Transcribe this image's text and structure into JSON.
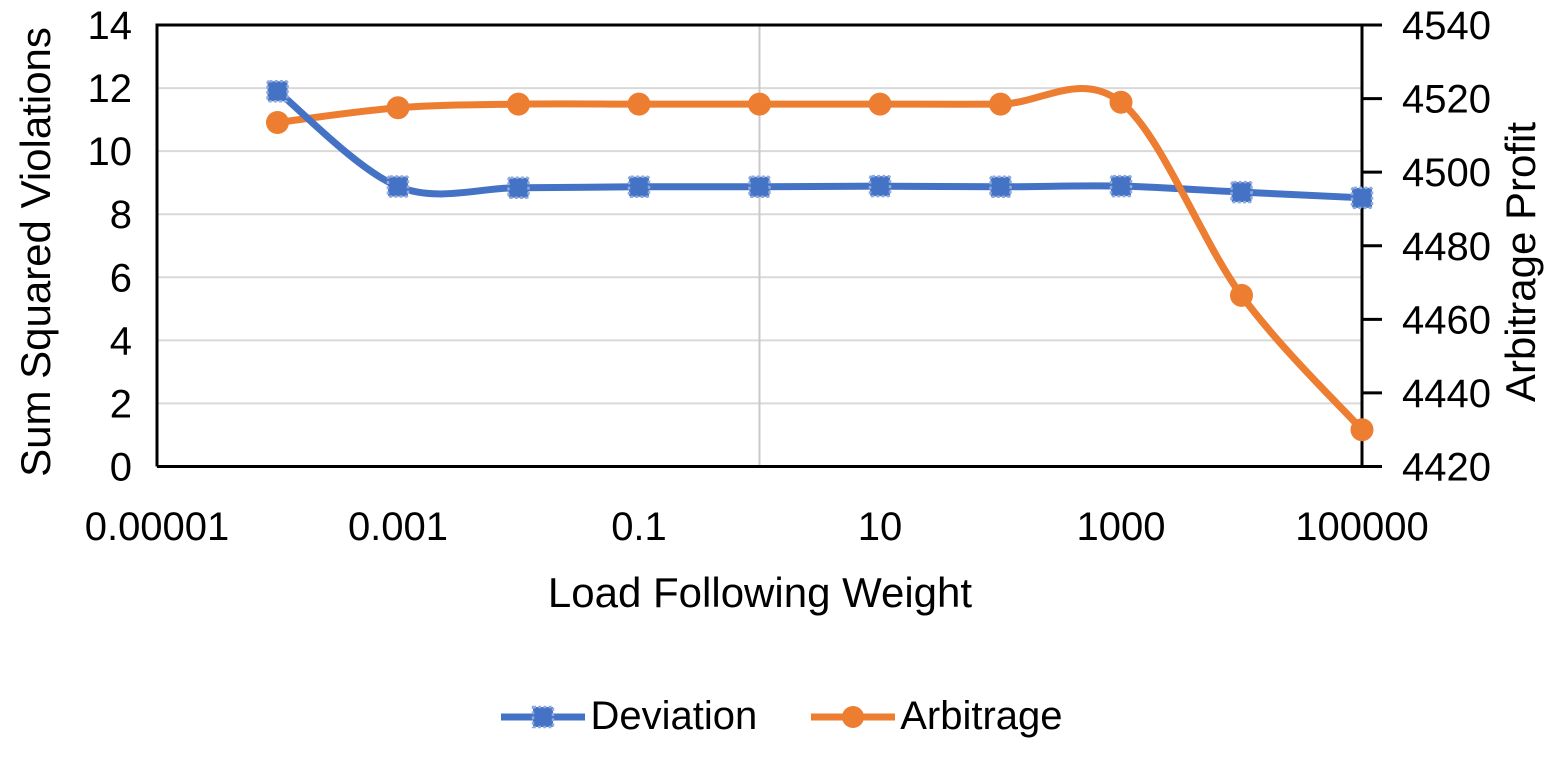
{
  "chart_data": {
    "type": "line",
    "smoothed": true,
    "x_scale": "log",
    "x": [
      0.0001,
      0.001,
      0.01,
      0.1,
      1,
      10,
      100,
      1000,
      10000,
      100000
    ],
    "series": [
      {
        "name": "Deviation",
        "axis": "left",
        "color": "#4472C4",
        "marker": "square",
        "marker_border": "#8FAADC",
        "values": [
          11.9,
          8.88,
          8.84,
          8.87,
          8.87,
          8.89,
          8.87,
          8.89,
          8.7,
          8.52
        ]
      },
      {
        "name": "Arbitrage",
        "axis": "right",
        "color": "#ED7D31",
        "marker": "circle",
        "values": [
          4513.5,
          4517.5,
          4518.5,
          4518.5,
          4518.5,
          4518.5,
          4518.5,
          4519,
          4466.5,
          4430
        ]
      }
    ],
    "x_axis": {
      "title": "Load Following Weight",
      "min": 1e-05,
      "max": 100000,
      "tick_values": [
        1e-05,
        0.001,
        0.1,
        10,
        1000,
        100000
      ],
      "tick_labels": [
        "0.00001",
        "0.001",
        "0.1",
        "10",
        "1000",
        "100000"
      ]
    },
    "y_left": {
      "title": "Sum Squared Violations",
      "min": 0,
      "max": 14,
      "step": 2,
      "tick_labels": [
        "0",
        "2",
        "4",
        "6",
        "8",
        "10",
        "12",
        "14"
      ]
    },
    "y_right": {
      "title": "Arbitrage Profit",
      "min": 4420,
      "max": 4540,
      "step": 20,
      "tick_labels": [
        "4420",
        "4440",
        "4460",
        "4480",
        "4500",
        "4520",
        "4540"
      ]
    },
    "vertical_gridline_x": 1,
    "legend": [
      {
        "label": "Deviation",
        "color": "#4472C4",
        "marker": "square"
      },
      {
        "label": "Arbitrage",
        "color": "#ED7D31",
        "marker": "circle"
      }
    ],
    "colors": {
      "grid": "#D9D9D9",
      "axis": "#000000",
      "text": "#000000"
    },
    "legend_position": "bottom",
    "grid": true
  }
}
